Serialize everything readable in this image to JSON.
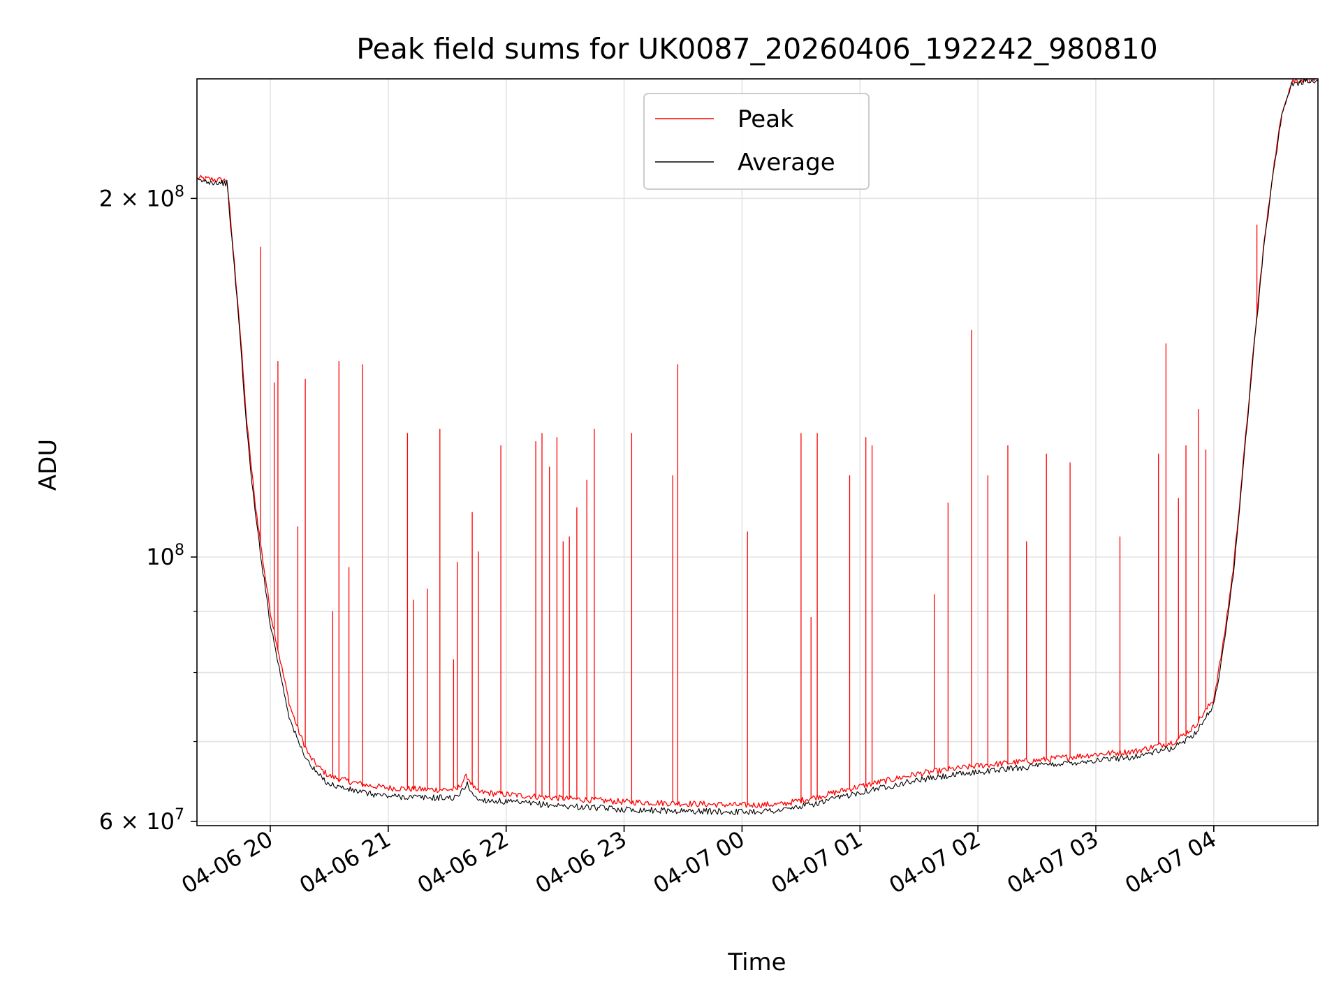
{
  "chart_data": {
    "type": "line",
    "title": "Peak field sums for UK0087_20260406_192242_980810",
    "xlabel": "Time",
    "ylabel": "ADU",
    "yscale": "log",
    "ylim": [
      59500000,
      252000000
    ],
    "xlim": [
      "2026-04-06 19:22:42",
      "2026-04-07 04:53:00"
    ],
    "grid": true,
    "legend_position": "upper center",
    "x_ticks": [
      {
        "t": "2026-04-06 20:00",
        "label": "04-06 20"
      },
      {
        "t": "2026-04-06 21:00",
        "label": "04-06 21"
      },
      {
        "t": "2026-04-06 22:00",
        "label": "04-06 22"
      },
      {
        "t": "2026-04-06 23:00",
        "label": "04-06 23"
      },
      {
        "t": "2026-04-07 00:00",
        "label": "04-07 00"
      },
      {
        "t": "2026-04-07 01:00",
        "label": "04-07 01"
      },
      {
        "t": "2026-04-07 02:00",
        "label": "04-07 02"
      },
      {
        "t": "2026-04-07 03:00",
        "label": "04-07 03"
      },
      {
        "t": "2026-04-07 04:00",
        "label": "04-07 04"
      }
    ],
    "y_ticks": [
      {
        "value": 60000000,
        "base": "6 × 10",
        "exp": "7"
      },
      {
        "value": 100000000,
        "base": "10",
        "exp": "8"
      },
      {
        "value": 200000000,
        "base": "2 × 10",
        "exp": "8"
      }
    ],
    "y_minor_ticks": [
      70000000,
      80000000,
      90000000
    ],
    "series": [
      {
        "name": "Peak",
        "color": "#ff0000",
        "x": [
          "2026-04-06 19:22:42",
          "2026-04-06 19:38",
          "2026-04-06 19:44",
          "2026-04-06 19:48",
          "2026-04-06 19:52",
          "2026-04-06 19:56",
          "2026-04-06 20:00",
          "2026-04-06 20:05",
          "2026-04-06 20:10",
          "2026-04-06 20:15",
          "2026-04-06 20:20",
          "2026-04-06 20:25",
          "2026-04-06 20:30",
          "2026-04-06 20:40",
          "2026-04-06 20:50",
          "2026-04-06 21:00",
          "2026-04-06 21:20",
          "2026-04-06 21:35",
          "2026-04-06 21:40",
          "2026-04-06 21:45",
          "2026-04-06 22:00",
          "2026-04-06 22:30",
          "2026-04-06 23:00",
          "2026-04-06 23:30",
          "2026-04-07 00:00",
          "2026-04-07 00:20",
          "2026-04-07 00:40",
          "2026-04-07 01:00",
          "2026-04-07 01:30",
          "2026-04-07 02:00",
          "2026-04-07 02:30",
          "2026-04-07 03:00",
          "2026-04-07 03:20",
          "2026-04-07 03:40",
          "2026-04-07 03:50",
          "2026-04-07 04:00",
          "2026-04-07 04:05",
          "2026-04-07 04:10",
          "2026-04-07 04:15",
          "2026-04-07 04:20",
          "2026-04-07 04:25",
          "2026-04-07 04:30",
          "2026-04-07 04:35",
          "2026-04-07 04:40",
          "2026-04-07 04:53"
        ],
        "y": [
          208000000,
          207000000,
          160000000,
          130000000,
          112000000,
          100000000,
          90000000,
          82000000,
          75000000,
          71000000,
          68000000,
          66500000,
          65500000,
          64800000,
          64300000,
          64000000,
          63800000,
          63800000,
          65500000,
          63500000,
          63200000,
          62700000,
          62300000,
          62100000,
          61900000,
          62000000,
          63000000,
          64200000,
          65800000,
          66800000,
          67500000,
          68300000,
          68700000,
          70000000,
          72000000,
          76000000,
          85000000,
          98000000,
          120000000,
          148000000,
          180000000,
          210000000,
          238000000,
          251000000,
          252000000
        ],
        "spikes": [
          {
            "t": "2026-04-06 19:55",
            "v": 182000000
          },
          {
            "t": "2026-04-06 20:02",
            "v": 140000000
          },
          {
            "t": "2026-04-06 20:04",
            "v": 146000000
          },
          {
            "t": "2026-04-06 20:14",
            "v": 106000000
          },
          {
            "t": "2026-04-06 20:18",
            "v": 141000000
          },
          {
            "t": "2026-04-06 20:32",
            "v": 90000000
          },
          {
            "t": "2026-04-06 20:35",
            "v": 146000000
          },
          {
            "t": "2026-04-06 20:40",
            "v": 98000000
          },
          {
            "t": "2026-04-06 20:47",
            "v": 145000000
          },
          {
            "t": "2026-04-06 21:10",
            "v": 127000000
          },
          {
            "t": "2026-04-06 21:13",
            "v": 92000000
          },
          {
            "t": "2026-04-06 21:20",
            "v": 94000000
          },
          {
            "t": "2026-04-06 21:26",
            "v": 128000000
          },
          {
            "t": "2026-04-06 21:33",
            "v": 82000000
          },
          {
            "t": "2026-04-06 21:35",
            "v": 99000000
          },
          {
            "t": "2026-04-06 21:43",
            "v": 109000000
          },
          {
            "t": "2026-04-06 21:46",
            "v": 101000000
          },
          {
            "t": "2026-04-06 21:57",
            "v": 124000000
          },
          {
            "t": "2026-04-06 22:15",
            "v": 125000000
          },
          {
            "t": "2026-04-06 22:18",
            "v": 127000000
          },
          {
            "t": "2026-04-06 22:22",
            "v": 119000000
          },
          {
            "t": "2026-04-06 22:26",
            "v": 126000000
          },
          {
            "t": "2026-04-06 22:29",
            "v": 103000000
          },
          {
            "t": "2026-04-06 22:32",
            "v": 104000000
          },
          {
            "t": "2026-04-06 22:36",
            "v": 110000000
          },
          {
            "t": "2026-04-06 22:41",
            "v": 116000000
          },
          {
            "t": "2026-04-06 22:45",
            "v": 128000000
          },
          {
            "t": "2026-04-06 23:04",
            "v": 127000000
          },
          {
            "t": "2026-04-06 23:25",
            "v": 117000000
          },
          {
            "t": "2026-04-06 23:27",
            "v": 145000000
          },
          {
            "t": "2026-04-07 00:03",
            "v": 105000000
          },
          {
            "t": "2026-04-07 00:30",
            "v": 127000000
          },
          {
            "t": "2026-04-07 00:35",
            "v": 89000000
          },
          {
            "t": "2026-04-07 00:38",
            "v": 127000000
          },
          {
            "t": "2026-04-07 00:55",
            "v": 117000000
          },
          {
            "t": "2026-04-07 01:03",
            "v": 126000000
          },
          {
            "t": "2026-04-07 01:06",
            "v": 124000000
          },
          {
            "t": "2026-04-07 01:38",
            "v": 93000000
          },
          {
            "t": "2026-04-07 01:45",
            "v": 111000000
          },
          {
            "t": "2026-04-07 01:57",
            "v": 155000000
          },
          {
            "t": "2026-04-07 02:05",
            "v": 117000000
          },
          {
            "t": "2026-04-07 02:15",
            "v": 124000000
          },
          {
            "t": "2026-04-07 02:25",
            "v": 103000000
          },
          {
            "t": "2026-04-07 02:35",
            "v": 122000000
          },
          {
            "t": "2026-04-07 02:47",
            "v": 120000000
          },
          {
            "t": "2026-04-07 03:12",
            "v": 104000000
          },
          {
            "t": "2026-04-07 03:32",
            "v": 122000000
          },
          {
            "t": "2026-04-07 03:36",
            "v": 151000000
          },
          {
            "t": "2026-04-07 03:42",
            "v": 112000000
          },
          {
            "t": "2026-04-07 03:46",
            "v": 124000000
          },
          {
            "t": "2026-04-07 03:52",
            "v": 133000000
          },
          {
            "t": "2026-04-07 03:56",
            "v": 123000000
          },
          {
            "t": "2026-04-07 04:22",
            "v": 190000000
          }
        ]
      },
      {
        "name": "Average",
        "color": "#000000",
        "x": [
          "2026-04-06 19:22:42",
          "2026-04-06 19:38",
          "2026-04-06 19:44",
          "2026-04-06 19:48",
          "2026-04-06 19:52",
          "2026-04-06 19:56",
          "2026-04-06 20:00",
          "2026-04-06 20:05",
          "2026-04-06 20:10",
          "2026-04-06 20:15",
          "2026-04-06 20:20",
          "2026-04-06 20:25",
          "2026-04-06 20:30",
          "2026-04-06 20:40",
          "2026-04-06 20:50",
          "2026-04-06 21:00",
          "2026-04-06 21:20",
          "2026-04-06 21:35",
          "2026-04-06 21:40",
          "2026-04-06 21:45",
          "2026-04-06 22:00",
          "2026-04-06 22:30",
          "2026-04-06 23:00",
          "2026-04-06 23:30",
          "2026-04-07 00:00",
          "2026-04-07 00:20",
          "2026-04-07 00:40",
          "2026-04-07 01:00",
          "2026-04-07 01:30",
          "2026-04-07 02:00",
          "2026-04-07 02:30",
          "2026-04-07 03:00",
          "2026-04-07 03:20",
          "2026-04-07 03:40",
          "2026-04-07 03:50",
          "2026-04-07 04:00",
          "2026-04-07 04:05",
          "2026-04-07 04:10",
          "2026-04-07 04:15",
          "2026-04-07 04:20",
          "2026-04-07 04:25",
          "2026-04-07 04:30",
          "2026-04-07 04:35",
          "2026-04-07 04:40",
          "2026-04-07 04:53"
        ],
        "y": [
          207000000,
          206000000,
          158000000,
          128000000,
          110000000,
          98000000,
          88000000,
          80000000,
          73000000,
          69500000,
          67000000,
          65500000,
          64500000,
          63800000,
          63300000,
          63000000,
          62800000,
          62800000,
          64500000,
          62600000,
          62300000,
          61800000,
          61400000,
          61200000,
          61100000,
          61300000,
          62200000,
          63500000,
          65000000,
          66000000,
          66800000,
          67500000,
          68000000,
          69200000,
          71000000,
          75000000,
          84000000,
          97000000,
          119000000,
          147000000,
          179000000,
          209000000,
          237000000,
          250000000,
          251000000
        ]
      }
    ]
  }
}
